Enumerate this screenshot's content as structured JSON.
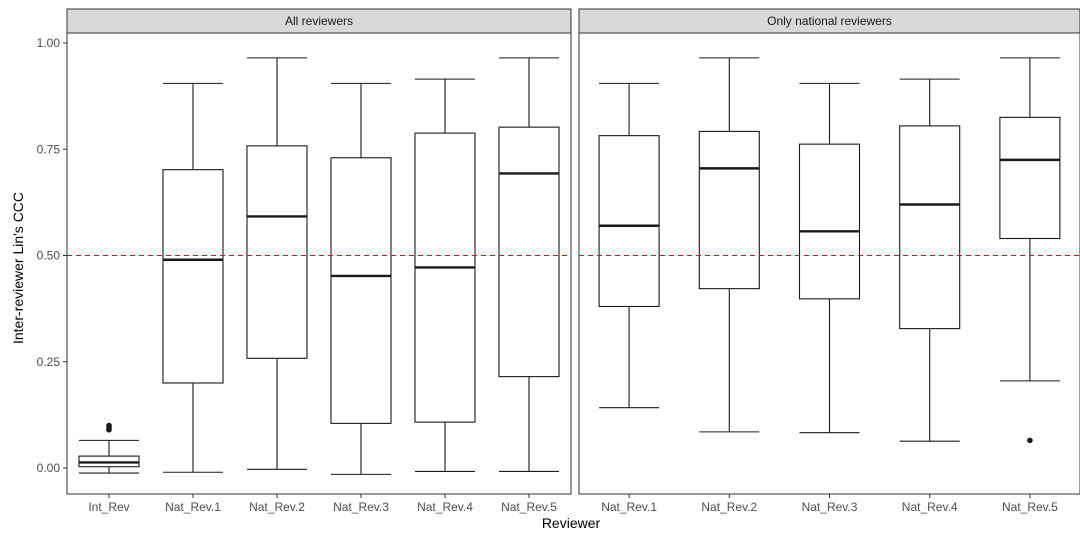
{
  "chart_data": {
    "type": "boxplot",
    "xlabel": "Reviewer",
    "ylabel": "Inter-reviewer Lin's CCC",
    "ylim": [
      -0.06,
      1.03
    ],
    "yticks": [
      "0.00",
      "0.25",
      "0.50",
      "0.75",
      "1.00"
    ],
    "ytick_values": [
      0,
      0.25,
      0.5,
      0.75,
      1.0
    ],
    "reference_line": {
      "y": 0.5,
      "color": "#ff0000",
      "style": "dashed"
    },
    "grid": false,
    "panels": [
      {
        "title": "All reviewers",
        "categories": [
          "Int_Rev",
          "Nat_Rev.1",
          "Nat_Rev.2",
          "Nat_Rev.3",
          "Nat_Rev.4",
          "Nat_Rev.5"
        ],
        "boxes": [
          {
            "whisker_low": -0.012,
            "q1": 0.003,
            "median": 0.013,
            "q3": 0.028,
            "whisker_high": 0.065,
            "outliers": [
              0.09,
              0.095,
              0.1
            ]
          },
          {
            "whisker_low": -0.01,
            "q1": 0.2,
            "median": 0.49,
            "q3": 0.702,
            "whisker_high": 0.905,
            "outliers": []
          },
          {
            "whisker_low": -0.003,
            "q1": 0.258,
            "median": 0.592,
            "q3": 0.758,
            "whisker_high": 0.965,
            "outliers": []
          },
          {
            "whisker_low": -0.015,
            "q1": 0.105,
            "median": 0.452,
            "q3": 0.73,
            "whisker_high": 0.905,
            "outliers": []
          },
          {
            "whisker_low": -0.008,
            "q1": 0.108,
            "median": 0.472,
            "q3": 0.788,
            "whisker_high": 0.915,
            "outliers": []
          },
          {
            "whisker_low": -0.008,
            "q1": 0.215,
            "median": 0.693,
            "q3": 0.802,
            "whisker_high": 0.965,
            "outliers": []
          }
        ]
      },
      {
        "title": "Only national reviewers",
        "categories": [
          "Nat_Rev.1",
          "Nat_Rev.2",
          "Nat_Rev.3",
          "Nat_Rev.4",
          "Nat_Rev.5"
        ],
        "boxes": [
          {
            "whisker_low": 0.142,
            "q1": 0.38,
            "median": 0.57,
            "q3": 0.782,
            "whisker_high": 0.905,
            "outliers": []
          },
          {
            "whisker_low": 0.085,
            "q1": 0.422,
            "median": 0.705,
            "q3": 0.792,
            "whisker_high": 0.965,
            "outliers": []
          },
          {
            "whisker_low": 0.083,
            "q1": 0.398,
            "median": 0.557,
            "q3": 0.762,
            "whisker_high": 0.905,
            "outliers": []
          },
          {
            "whisker_low": 0.063,
            "q1": 0.328,
            "median": 0.62,
            "q3": 0.805,
            "whisker_high": 0.915,
            "outliers": []
          },
          {
            "whisker_low": 0.205,
            "q1": 0.54,
            "median": 0.725,
            "q3": 0.825,
            "whisker_high": 0.965,
            "outliers": [
              0.065
            ]
          }
        ]
      }
    ]
  }
}
